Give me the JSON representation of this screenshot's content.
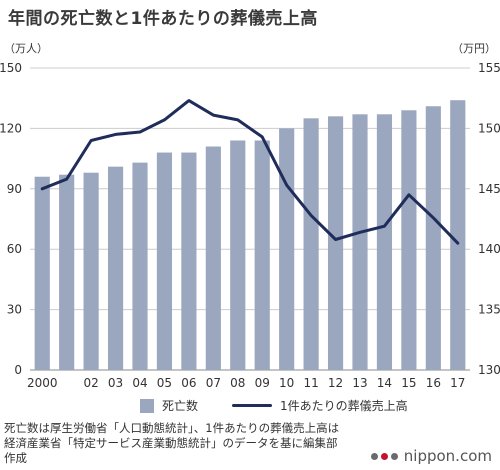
{
  "title": "年間の死亡数と1件あたりの葬儀売上高",
  "left_unit": "（万人）",
  "right_unit": "（万円）",
  "colors": {
    "bar": "#9ba6bf",
    "line": "#1f2d5a",
    "grid": "#cccccc"
  },
  "chart_data": {
    "type": "bar",
    "categories": [
      "2000",
      "",
      "02",
      "03",
      "04",
      "05",
      "06",
      "07",
      "08",
      "09",
      "10",
      "11",
      "12",
      "13",
      "14",
      "15",
      "16",
      "17"
    ],
    "series": [
      {
        "name": "死亡数",
        "type": "bar",
        "axis": "left",
        "values": [
          96,
          97,
          98,
          101,
          103,
          108,
          108,
          111,
          114,
          114,
          120,
          125,
          126,
          127,
          127,
          129,
          131,
          134
        ]
      },
      {
        "name": "1件あたりの葬儀売上高",
        "type": "line",
        "axis": "right",
        "values": [
          145,
          145.8,
          149,
          149.5,
          149.7,
          150.7,
          152.3,
          151.1,
          150.7,
          149.3,
          145.3,
          142.8,
          140.8,
          141.4,
          141.9,
          144.5,
          142.6,
          140.5
        ]
      }
    ],
    "left_ticks": [
      "0",
      "30",
      "60",
      "90",
      "120",
      "150"
    ],
    "right_ticks": [
      "130",
      "135",
      "140",
      "145",
      "150",
      "155"
    ],
    "ylim_left": [
      0,
      150
    ],
    "ylim_right": [
      130,
      155
    ],
    "grid": true,
    "legend_position": "bottom"
  },
  "legend": {
    "bar_label": "死亡数",
    "line_label": "1件あたりの葬儀売上高"
  },
  "note": [
    "死亡数は厚生労働省「人口動態統計」、1件あたりの葬儀売上高は",
    "経済産業省「特定サービス産業動態統計」のデータを基に編集部",
    "作成"
  ],
  "brand": "nippon.com"
}
